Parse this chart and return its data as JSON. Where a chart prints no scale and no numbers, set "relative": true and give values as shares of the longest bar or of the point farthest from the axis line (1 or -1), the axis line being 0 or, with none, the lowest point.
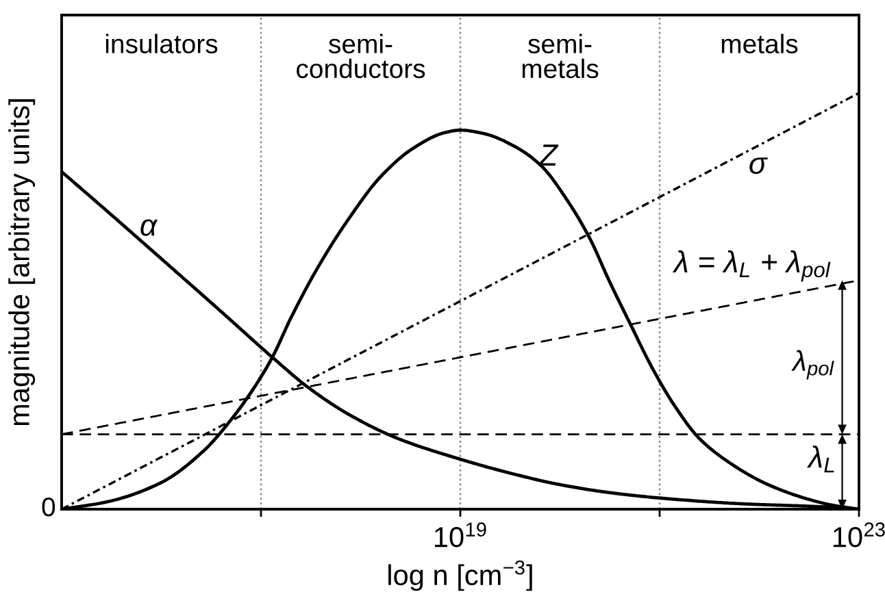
{
  "chart_data": {
    "type": "line",
    "xlabel": "log n [cm$^{−3}$]",
    "ylabel": "magnitude [arbitrary units]",
    "log": "x",
    "relative": true,
    "xlim": [
      1000000000000000.0,
      1e+23
    ],
    "xticks": [
      {
        "value": 1e+17,
        "label": null
      },
      {
        "value": 1e+19,
        "label": "10$^{19}$"
      },
      {
        "value": 1e+21,
        "label": null
      },
      {
        "value": 1e+23,
        "label": "10$^{23}$"
      }
    ],
    "ref_lines": [
      {
        "axis": "x",
        "value": 1e+17,
        "color": "#888888",
        "line_style": "dotted"
      },
      {
        "axis": "x",
        "value": 1e+19,
        "color": "#888888",
        "line_style": "dotted"
      },
      {
        "axis": "x",
        "value": 1e+21,
        "color": "#888888",
        "line_style": "dotted"
      }
    ],
    "annotations": [
      "insulators",
      "semi-\nconductors",
      "semi-\nmetals",
      "metals",
      "λ$_{pol}$",
      {
        "text": "0",
        "x": 1000000000000000.0,
        "y": 0
      }
    ],
    "series": [
      {
        "name": "α",
        "color": "#000000",
        "line_style": "solid",
        "x": [
          1000000000000000.0,
          2900000000000000.0,
          7600000000000000.0,
          1.8e+16,
          4.2e+16,
          1.3e+17,
          3e+17,
          7.7e+17,
          2.3e+18,
          9.4e+18,
          2.8e+19,
          9.5e+19,
          3.1e+20,
          1.1e+21,
          6.7e+21,
          4.1e+22,
          1e+23
        ],
        "values": [
          0.811,
          0.715,
          0.627,
          0.548,
          0.47,
          0.365,
          0.292,
          0.227,
          0.171,
          0.122,
          0.09,
          0.06,
          0.04,
          0.026,
          0.013,
          0.006,
          0
        ]
      },
      {
        "name": "Z",
        "color": "#000000",
        "line_style": "solid",
        "x": [
          1000000000000000.0,
          2900000000000000.0,
          9800000000000000.0,
          2.6e+16,
          5.4e+16,
          8.7e+16,
          1.3e+17,
          2e+17,
          3.7e+17,
          7.7e+17,
          1.6e+18,
          3.4e+18,
          7e+18,
          1e+19,
          1.7e+19,
          3.5e+19,
          6.5e+19,
          1.2e+20,
          2e+20,
          3.1e+20,
          5.2e+20,
          8.4e+20,
          1.4e+21,
          2.5e+21,
          5.3e+21,
          1.2e+22,
          2.9e+22,
          5.3e+22,
          1e+23
        ],
        "values": [
          0,
          0.018,
          0.063,
          0.138,
          0.225,
          0.295,
          0.365,
          0.46,
          0.58,
          0.7,
          0.8,
          0.868,
          0.905,
          0.911,
          0.903,
          0.872,
          0.825,
          0.74,
          0.65,
          0.55,
          0.44,
          0.34,
          0.25,
          0.17,
          0.108,
          0.06,
          0.026,
          0.01,
          0
        ]
      },
      {
        "name": "σ",
        "color": "#000000",
        "line_style": "dotted",
        "x": [
          1000000000000000.0,
          1e+23
        ],
        "values": [
          0,
          1
        ]
      },
      {
        "name": "λ = λ$_{L}$ + λ$_{pol}$",
        "color": "#000000",
        "line_style": "dashed",
        "x": [
          1000000000000000.0,
          1e+23
        ],
        "values": [
          0.18,
          0.55
        ]
      },
      {
        "name": "λ$_{L}$",
        "color": "#000000",
        "line_style": "dashed",
        "x": [
          1000000000000000.0,
          1e+23
        ],
        "values": [
          0.18,
          0.18
        ]
      }
    ]
  }
}
